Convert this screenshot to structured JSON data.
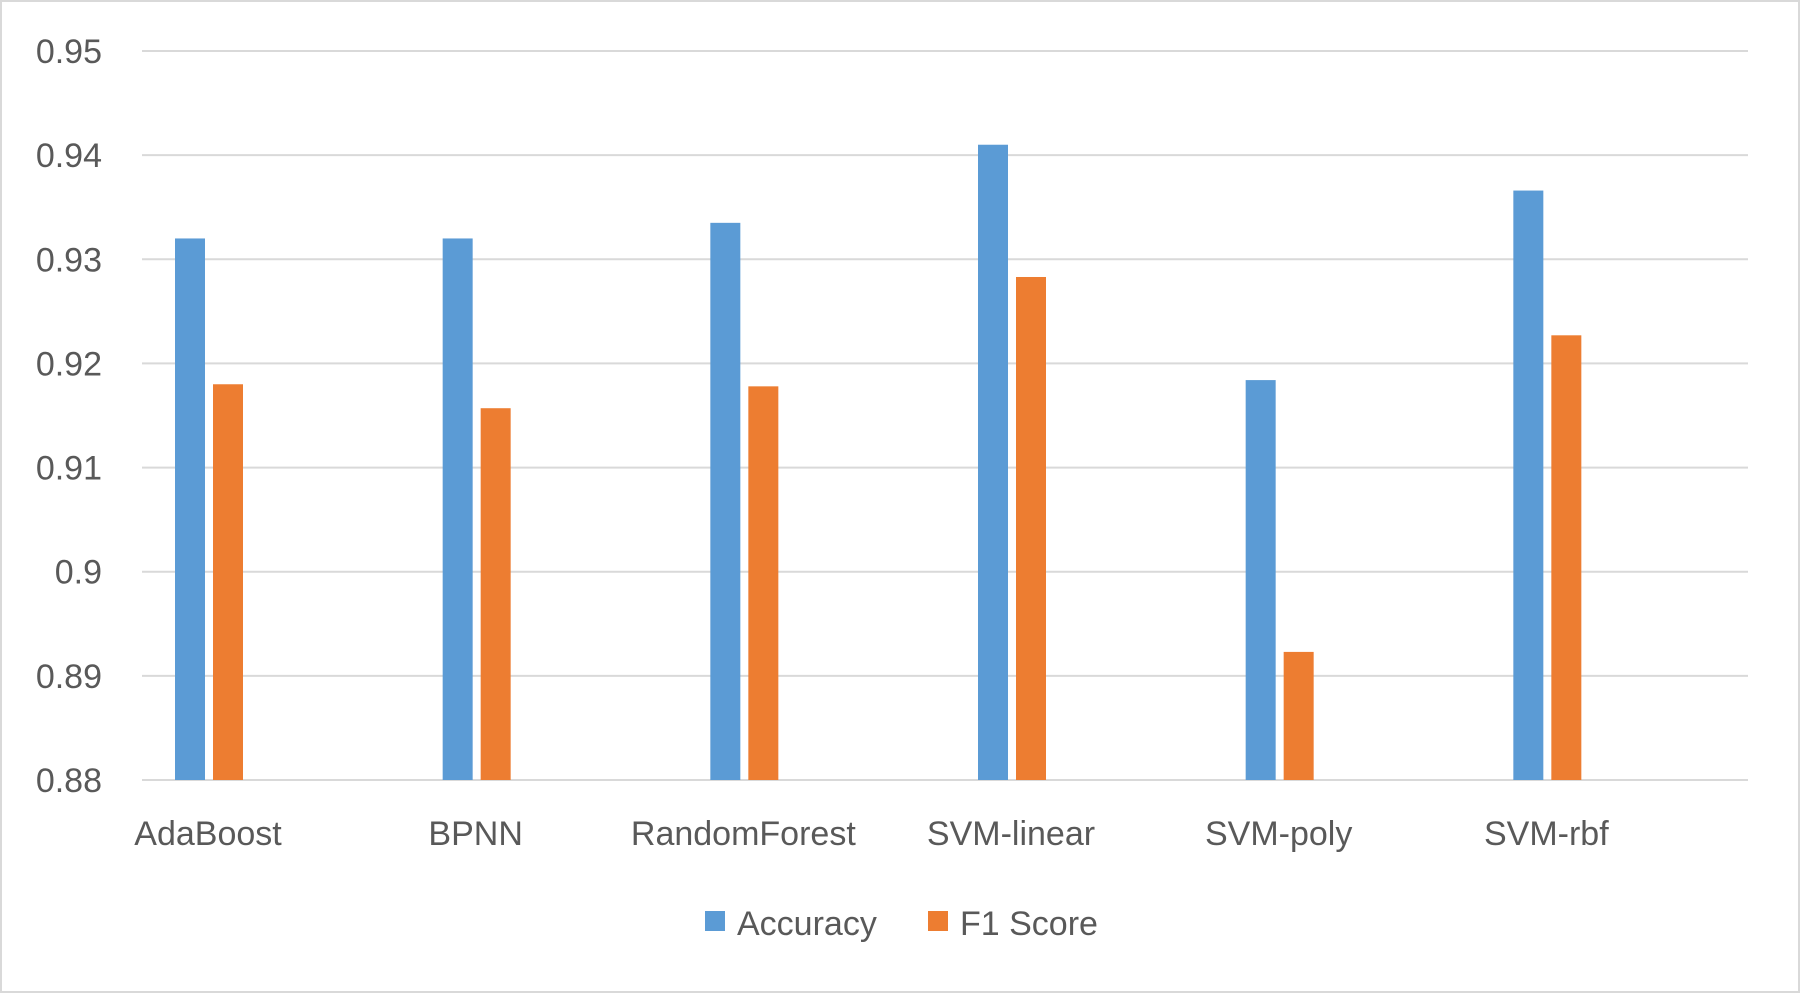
{
  "chart_data": {
    "type": "bar",
    "categories": [
      "AdaBoost",
      "BPNN",
      "RandomForest",
      "SVM-linear",
      "SVM-poly",
      "SVM-rbf"
    ],
    "series": [
      {
        "name": "Accuracy",
        "color": "#5b9bd5",
        "values": [
          0.932,
          0.932,
          0.9335,
          0.941,
          0.9184,
          0.9366
        ]
      },
      {
        "name": "F1 Score",
        "color": "#ed7d31",
        "values": [
          0.918,
          0.9157,
          0.9178,
          0.9283,
          0.8923,
          0.9227
        ]
      }
    ],
    "ylim": [
      0.88,
      0.95
    ],
    "yticks": [
      "0.88",
      "0.89",
      "0.9",
      "0.91",
      "0.92",
      "0.93",
      "0.94",
      "0.95"
    ],
    "grid": true,
    "legend": "bottom",
    "gridline_color": "#d9d9d9",
    "axis_text_color": "#595959"
  }
}
